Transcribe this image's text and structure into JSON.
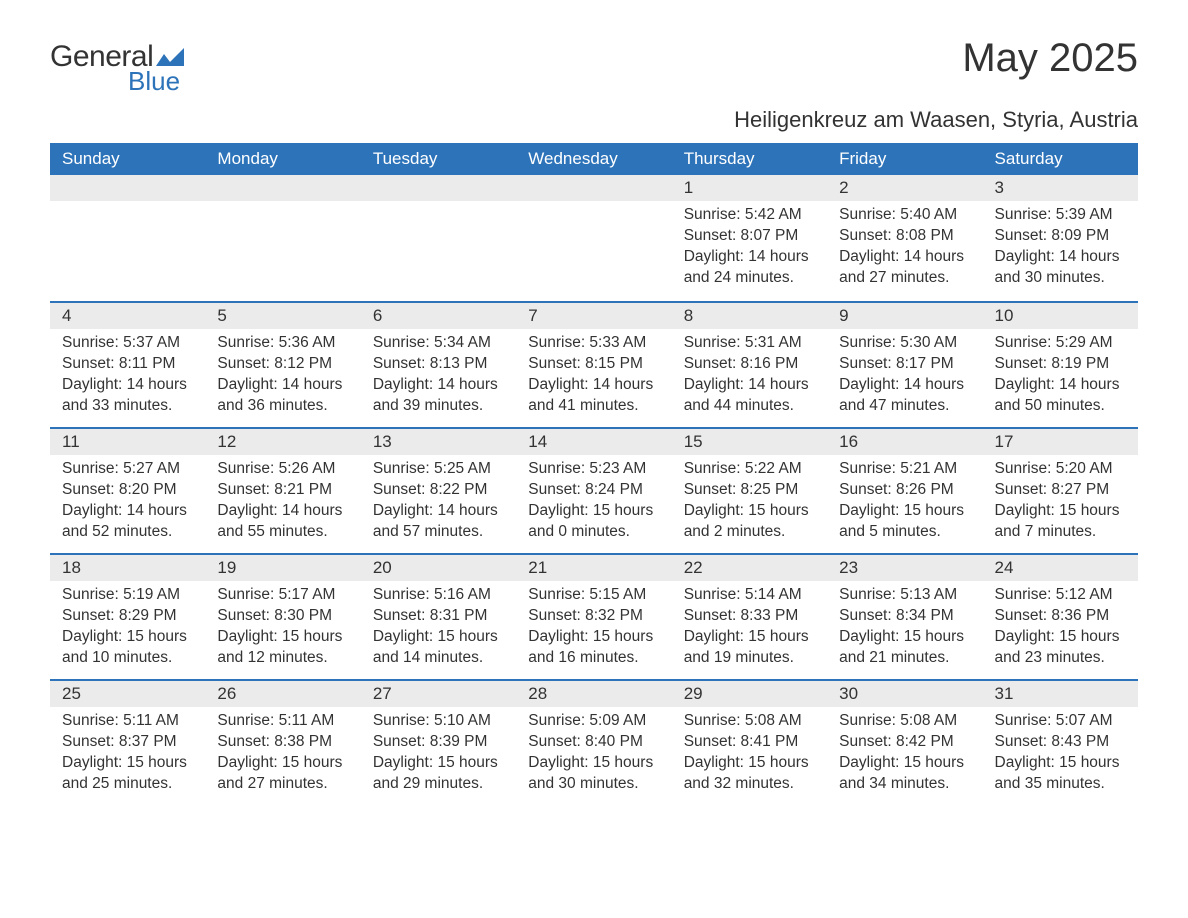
{
  "brand": {
    "word1": "General",
    "word2": "Blue",
    "logo_color": "#2d73b9"
  },
  "title": "May 2025",
  "subtitle": "Heiligenkreuz am Waasen, Styria, Austria",
  "colors": {
    "header_bg": "#2d73b9",
    "header_text": "#ffffff",
    "daynum_bg": "#ebebeb",
    "row_divider": "#2d73b9",
    "text": "#333333",
    "background": "#ffffff"
  },
  "typography": {
    "title_fontsize": 40,
    "subtitle_fontsize": 22,
    "header_fontsize": 17,
    "daynum_fontsize": 17,
    "body_fontsize": 15.5,
    "font_family": "Arial"
  },
  "weekdays": [
    "Sunday",
    "Monday",
    "Tuesday",
    "Wednesday",
    "Thursday",
    "Friday",
    "Saturday"
  ],
  "weeks": [
    [
      {
        "n": "",
        "sunrise": "",
        "sunset": "",
        "daylight": ""
      },
      {
        "n": "",
        "sunrise": "",
        "sunset": "",
        "daylight": ""
      },
      {
        "n": "",
        "sunrise": "",
        "sunset": "",
        "daylight": ""
      },
      {
        "n": "",
        "sunrise": "",
        "sunset": "",
        "daylight": ""
      },
      {
        "n": "1",
        "sunrise": "Sunrise: 5:42 AM",
        "sunset": "Sunset: 8:07 PM",
        "daylight": "Daylight: 14 hours and 24 minutes."
      },
      {
        "n": "2",
        "sunrise": "Sunrise: 5:40 AM",
        "sunset": "Sunset: 8:08 PM",
        "daylight": "Daylight: 14 hours and 27 minutes."
      },
      {
        "n": "3",
        "sunrise": "Sunrise: 5:39 AM",
        "sunset": "Sunset: 8:09 PM",
        "daylight": "Daylight: 14 hours and 30 minutes."
      }
    ],
    [
      {
        "n": "4",
        "sunrise": "Sunrise: 5:37 AM",
        "sunset": "Sunset: 8:11 PM",
        "daylight": "Daylight: 14 hours and 33 minutes."
      },
      {
        "n": "5",
        "sunrise": "Sunrise: 5:36 AM",
        "sunset": "Sunset: 8:12 PM",
        "daylight": "Daylight: 14 hours and 36 minutes."
      },
      {
        "n": "6",
        "sunrise": "Sunrise: 5:34 AM",
        "sunset": "Sunset: 8:13 PM",
        "daylight": "Daylight: 14 hours and 39 minutes."
      },
      {
        "n": "7",
        "sunrise": "Sunrise: 5:33 AM",
        "sunset": "Sunset: 8:15 PM",
        "daylight": "Daylight: 14 hours and 41 minutes."
      },
      {
        "n": "8",
        "sunrise": "Sunrise: 5:31 AM",
        "sunset": "Sunset: 8:16 PM",
        "daylight": "Daylight: 14 hours and 44 minutes."
      },
      {
        "n": "9",
        "sunrise": "Sunrise: 5:30 AM",
        "sunset": "Sunset: 8:17 PM",
        "daylight": "Daylight: 14 hours and 47 minutes."
      },
      {
        "n": "10",
        "sunrise": "Sunrise: 5:29 AM",
        "sunset": "Sunset: 8:19 PM",
        "daylight": "Daylight: 14 hours and 50 minutes."
      }
    ],
    [
      {
        "n": "11",
        "sunrise": "Sunrise: 5:27 AM",
        "sunset": "Sunset: 8:20 PM",
        "daylight": "Daylight: 14 hours and 52 minutes."
      },
      {
        "n": "12",
        "sunrise": "Sunrise: 5:26 AM",
        "sunset": "Sunset: 8:21 PM",
        "daylight": "Daylight: 14 hours and 55 minutes."
      },
      {
        "n": "13",
        "sunrise": "Sunrise: 5:25 AM",
        "sunset": "Sunset: 8:22 PM",
        "daylight": "Daylight: 14 hours and 57 minutes."
      },
      {
        "n": "14",
        "sunrise": "Sunrise: 5:23 AM",
        "sunset": "Sunset: 8:24 PM",
        "daylight": "Daylight: 15 hours and 0 minutes."
      },
      {
        "n": "15",
        "sunrise": "Sunrise: 5:22 AM",
        "sunset": "Sunset: 8:25 PM",
        "daylight": "Daylight: 15 hours and 2 minutes."
      },
      {
        "n": "16",
        "sunrise": "Sunrise: 5:21 AM",
        "sunset": "Sunset: 8:26 PM",
        "daylight": "Daylight: 15 hours and 5 minutes."
      },
      {
        "n": "17",
        "sunrise": "Sunrise: 5:20 AM",
        "sunset": "Sunset: 8:27 PM",
        "daylight": "Daylight: 15 hours and 7 minutes."
      }
    ],
    [
      {
        "n": "18",
        "sunrise": "Sunrise: 5:19 AM",
        "sunset": "Sunset: 8:29 PM",
        "daylight": "Daylight: 15 hours and 10 minutes."
      },
      {
        "n": "19",
        "sunrise": "Sunrise: 5:17 AM",
        "sunset": "Sunset: 8:30 PM",
        "daylight": "Daylight: 15 hours and 12 minutes."
      },
      {
        "n": "20",
        "sunrise": "Sunrise: 5:16 AM",
        "sunset": "Sunset: 8:31 PM",
        "daylight": "Daylight: 15 hours and 14 minutes."
      },
      {
        "n": "21",
        "sunrise": "Sunrise: 5:15 AM",
        "sunset": "Sunset: 8:32 PM",
        "daylight": "Daylight: 15 hours and 16 minutes."
      },
      {
        "n": "22",
        "sunrise": "Sunrise: 5:14 AM",
        "sunset": "Sunset: 8:33 PM",
        "daylight": "Daylight: 15 hours and 19 minutes."
      },
      {
        "n": "23",
        "sunrise": "Sunrise: 5:13 AM",
        "sunset": "Sunset: 8:34 PM",
        "daylight": "Daylight: 15 hours and 21 minutes."
      },
      {
        "n": "24",
        "sunrise": "Sunrise: 5:12 AM",
        "sunset": "Sunset: 8:36 PM",
        "daylight": "Daylight: 15 hours and 23 minutes."
      }
    ],
    [
      {
        "n": "25",
        "sunrise": "Sunrise: 5:11 AM",
        "sunset": "Sunset: 8:37 PM",
        "daylight": "Daylight: 15 hours and 25 minutes."
      },
      {
        "n": "26",
        "sunrise": "Sunrise: 5:11 AM",
        "sunset": "Sunset: 8:38 PM",
        "daylight": "Daylight: 15 hours and 27 minutes."
      },
      {
        "n": "27",
        "sunrise": "Sunrise: 5:10 AM",
        "sunset": "Sunset: 8:39 PM",
        "daylight": "Daylight: 15 hours and 29 minutes."
      },
      {
        "n": "28",
        "sunrise": "Sunrise: 5:09 AM",
        "sunset": "Sunset: 8:40 PM",
        "daylight": "Daylight: 15 hours and 30 minutes."
      },
      {
        "n": "29",
        "sunrise": "Sunrise: 5:08 AM",
        "sunset": "Sunset: 8:41 PM",
        "daylight": "Daylight: 15 hours and 32 minutes."
      },
      {
        "n": "30",
        "sunrise": "Sunrise: 5:08 AM",
        "sunset": "Sunset: 8:42 PM",
        "daylight": "Daylight: 15 hours and 34 minutes."
      },
      {
        "n": "31",
        "sunrise": "Sunrise: 5:07 AM",
        "sunset": "Sunset: 8:43 PM",
        "daylight": "Daylight: 15 hours and 35 minutes."
      }
    ]
  ]
}
